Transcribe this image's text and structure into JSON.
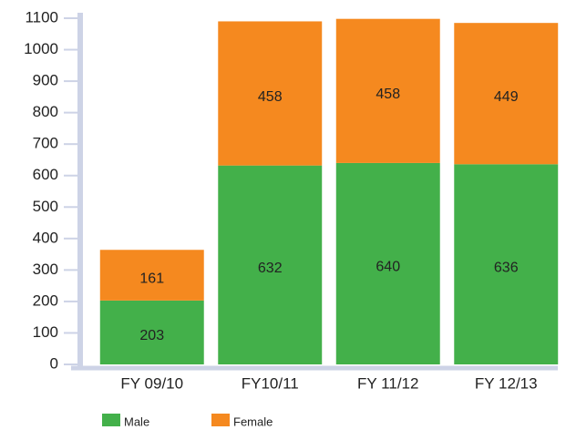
{
  "chart_data": {
    "type": "stacked_bar",
    "categories": [
      "FY 09/10",
      "FY10/11",
      "FY 11/12",
      "FY 12/13"
    ],
    "series": [
      {
        "name": "Male",
        "color": "#43b04a",
        "values": [
          203,
          632,
          640,
          636
        ]
      },
      {
        "name": "Female",
        "color": "#f5891f",
        "values": [
          161,
          458,
          458,
          449
        ]
      }
    ],
    "ylim": [
      0,
      1100
    ],
    "yticks": [
      0,
      100,
      200,
      300,
      400,
      500,
      600,
      700,
      800,
      900,
      1000,
      1100
    ],
    "legend": "bottom-left"
  }
}
